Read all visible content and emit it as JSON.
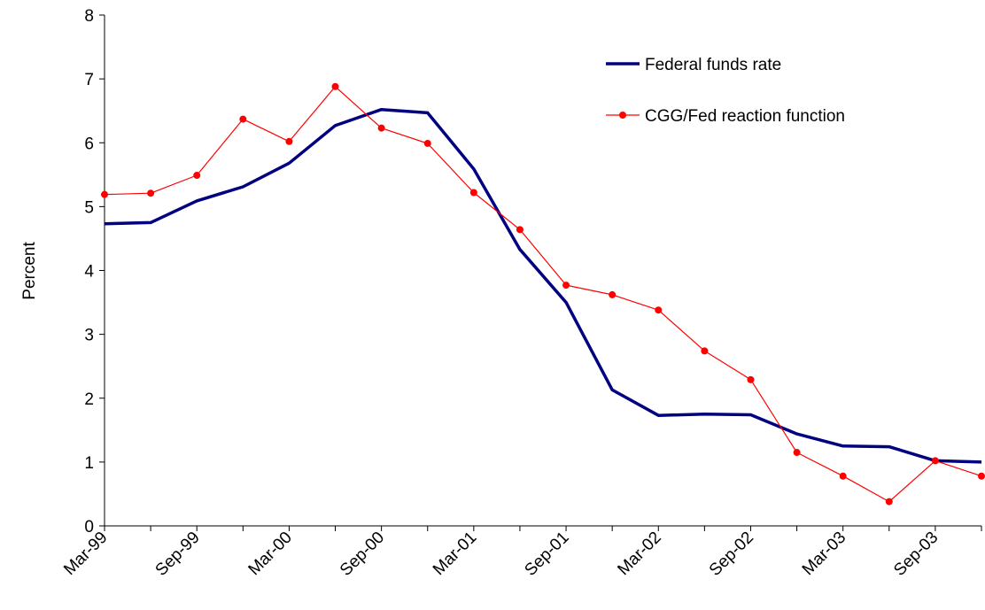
{
  "chart_data": {
    "type": "line",
    "y_label": "Percent",
    "categories": [
      "Mar-99",
      null,
      "Sep-99",
      null,
      "Mar-00",
      null,
      "Sep-00",
      null,
      "Mar-01",
      null,
      "Sep-01",
      null,
      "Mar-02",
      null,
      "Sep-02",
      null,
      "Mar-03",
      null,
      "Sep-03",
      null
    ],
    "series": [
      {
        "name": "Federal funds rate",
        "color": "#000080",
        "marker": false,
        "values": [
          4.73,
          4.75,
          5.09,
          5.31,
          5.68,
          6.27,
          6.52,
          6.47,
          5.59,
          4.33,
          3.5,
          2.13,
          1.73,
          1.75,
          1.74,
          1.44,
          1.25,
          1.24,
          1.02,
          1.0
        ]
      },
      {
        "name": "CGG/Fed reaction function",
        "color": "#ff0000",
        "marker": true,
        "values": [
          5.19,
          5.21,
          5.49,
          6.37,
          6.02,
          6.88,
          6.23,
          5.99,
          5.22,
          4.64,
          3.77,
          3.62,
          3.38,
          2.74,
          2.29,
          1.15,
          0.78,
          0.38,
          1.02,
          0.78
        ]
      }
    ],
    "ylim": [
      0,
      8
    ],
    "yticks": [
      0,
      1,
      2,
      3,
      4,
      5,
      6,
      7,
      8
    ],
    "grid": false
  }
}
